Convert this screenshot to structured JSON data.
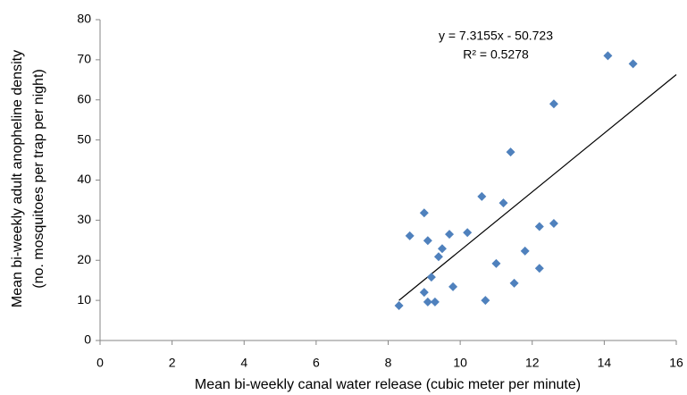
{
  "chart_data": {
    "type": "scatter",
    "x_label": "Mean bi-weekly canal water release (cubic meter per minute)",
    "y_label": [
      "Mean bi-weekly adult anopheline density",
      "(no. mosquitoes per trap per night)"
    ],
    "annotations": [
      "y = 7.3155x - 50.723",
      "R² = 0.5278"
    ],
    "x": [
      8.3,
      8.6,
      9.0,
      9.0,
      9.1,
      9.1,
      9.2,
      9.3,
      9.4,
      9.5,
      9.7,
      9.8,
      10.2,
      10.6,
      10.7,
      11.0,
      11.2,
      11.4,
      11.5,
      11.8,
      12.2,
      12.2,
      12.6,
      12.6,
      14.1,
      14.8
    ],
    "series": [
      {
        "color": "#4f81bd",
        "values": [
          8.7,
          26.1,
          31.8,
          12.0,
          24.9,
          9.6,
          15.8,
          9.6,
          20.9,
          22.9,
          26.5,
          13.4,
          26.9,
          35.9,
          10.0,
          19.2,
          34.3,
          47.0,
          14.3,
          22.3,
          28.4,
          18.0,
          29.2,
          59.0,
          71.0,
          69.0
        ]
      }
    ],
    "trendline": {
      "x": [
        8.3,
        16
      ],
      "values": [
        10.0,
        66.3
      ],
      "color": "#000000"
    },
    "xlim": [
      0,
      16
    ],
    "xticks": [
      0,
      2,
      4,
      6,
      8,
      10,
      12,
      14,
      16
    ],
    "ylim": [
      0,
      80
    ],
    "yticks": [
      0,
      10,
      20,
      30,
      40,
      50,
      60,
      70,
      80
    ],
    "grid": false
  }
}
